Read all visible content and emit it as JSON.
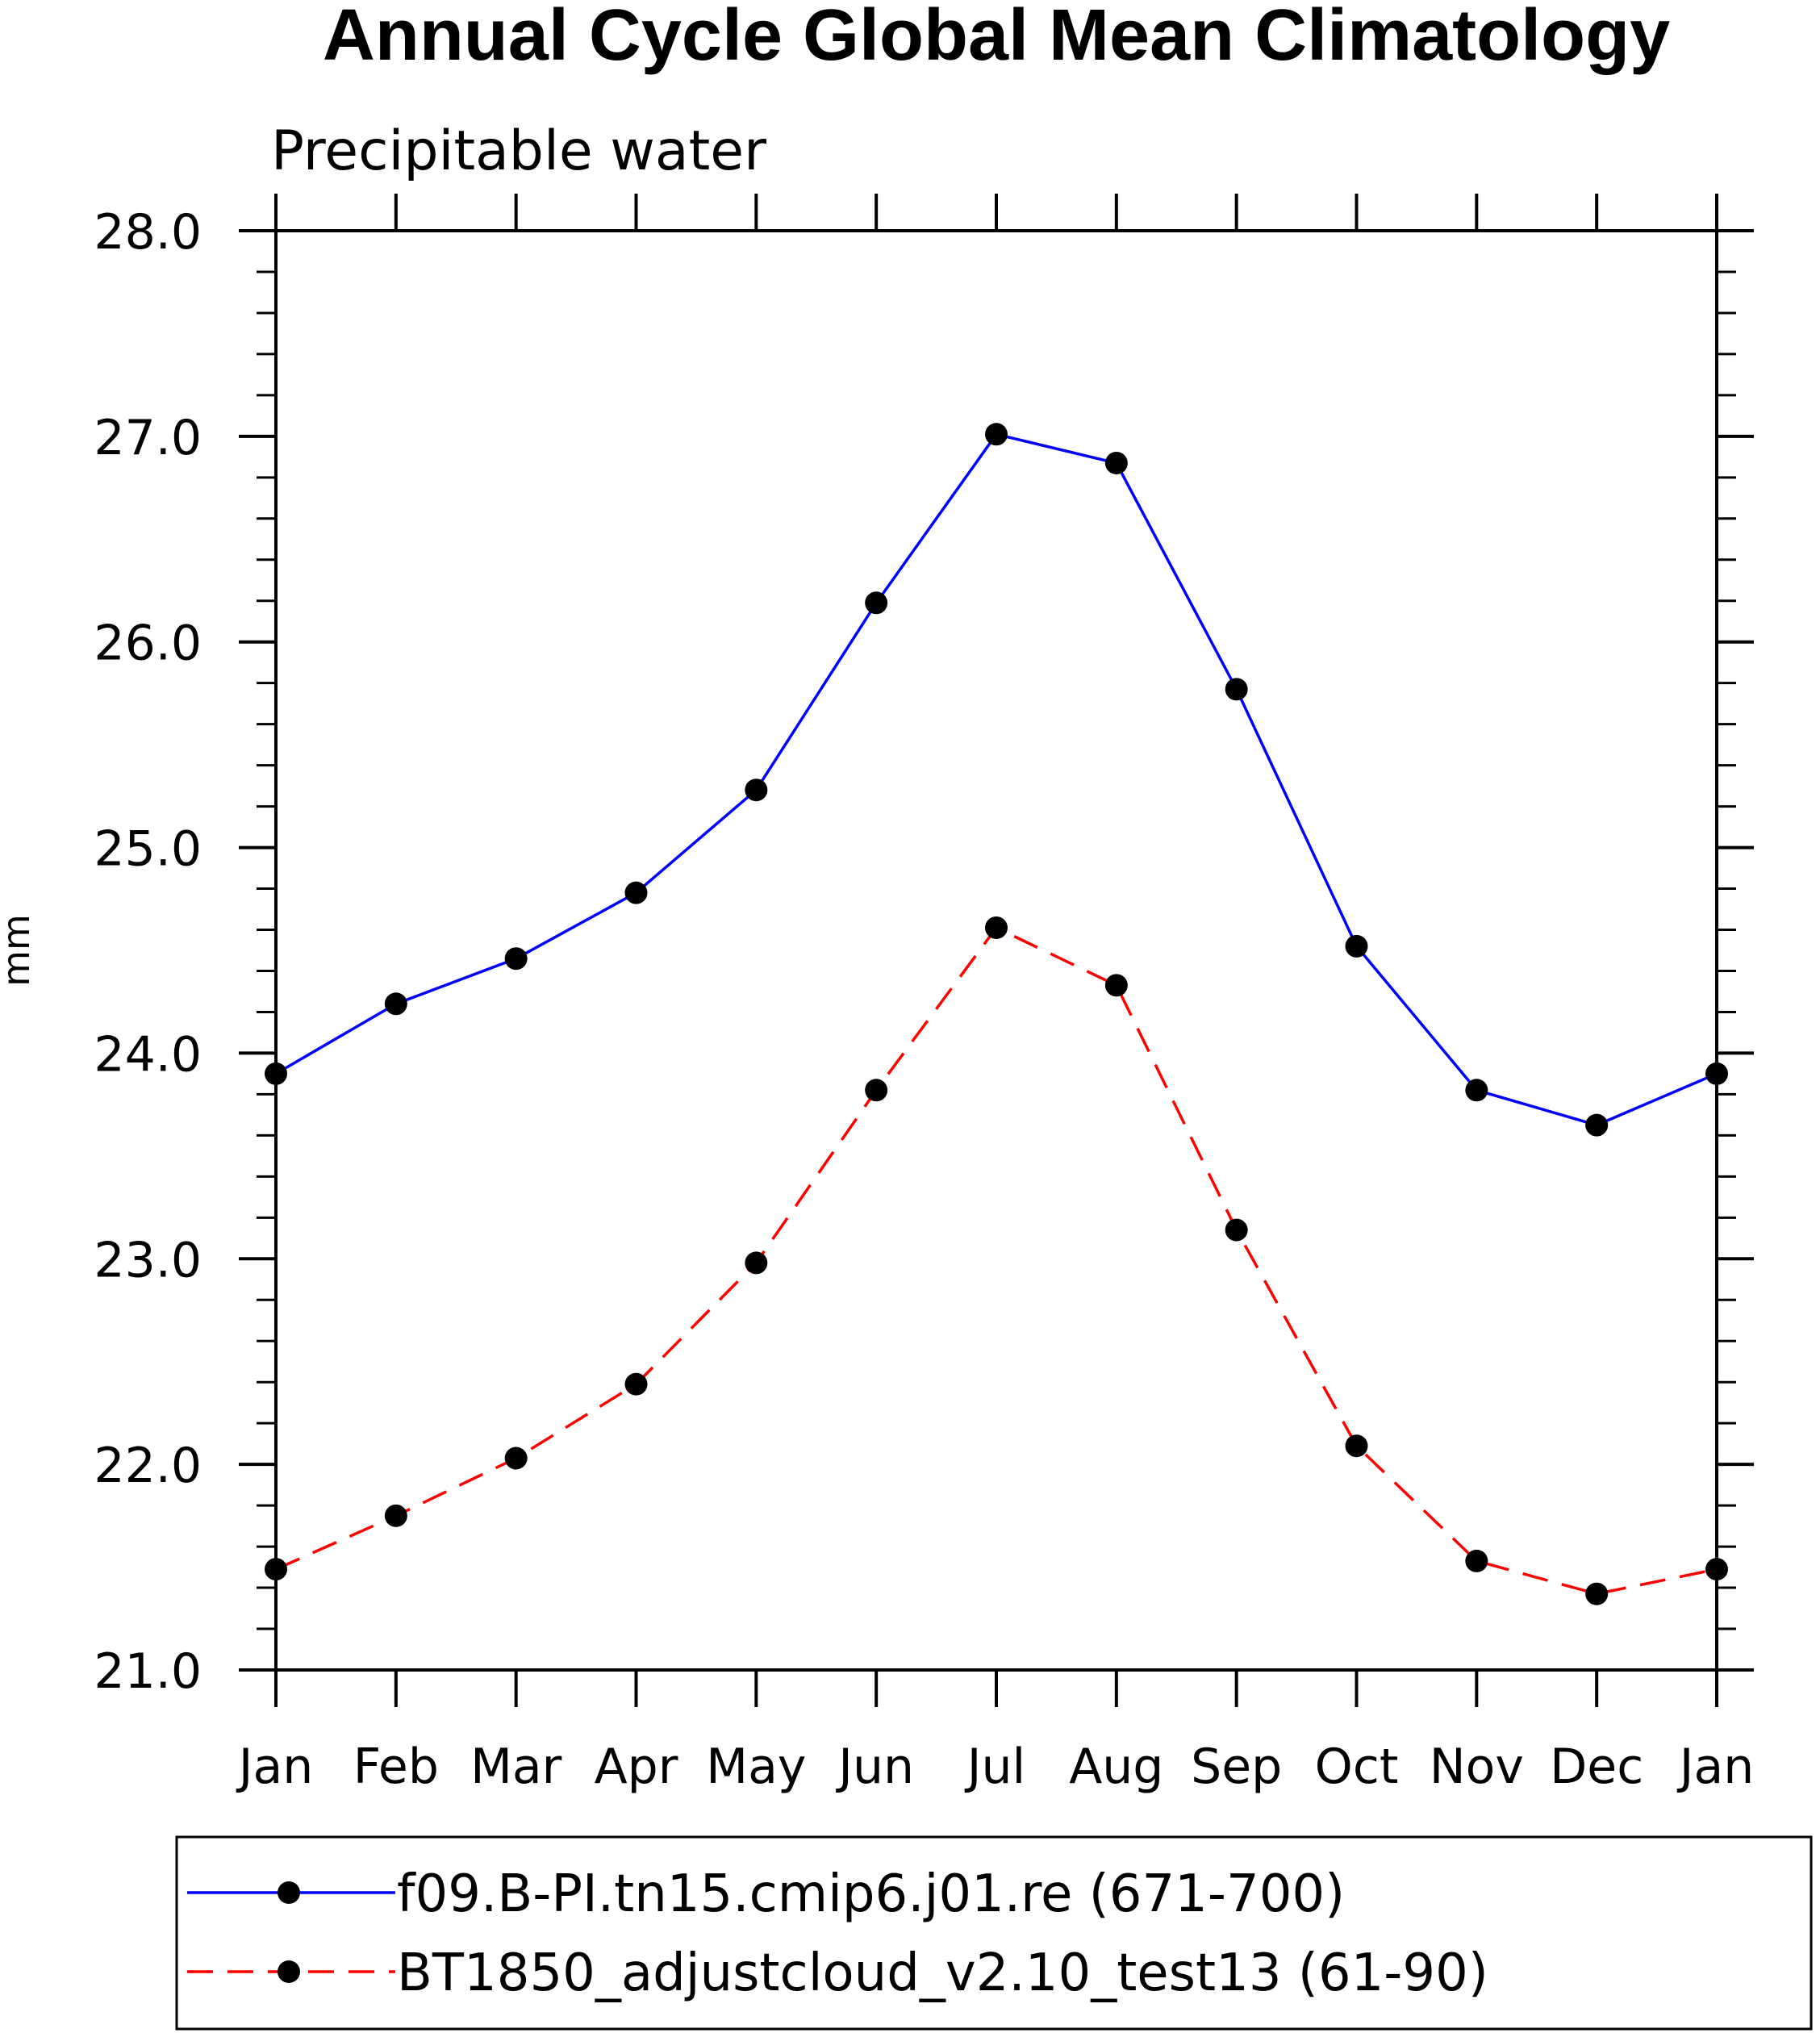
{
  "chart_data": {
    "type": "line",
    "title": "Annual Cycle Global Mean Climatology",
    "subtitle": "Precipitable water",
    "xlabel": "",
    "ylabel": "mm",
    "categories": [
      "Jan",
      "Feb",
      "Mar",
      "Apr",
      "May",
      "Jun",
      "Jul",
      "Aug",
      "Sep",
      "Oct",
      "Nov",
      "Dec",
      "Jan"
    ],
    "ylim": [
      21.0,
      28.0
    ],
    "ytick_labels": [
      "21.0",
      "22.0",
      "23.0",
      "24.0",
      "25.0",
      "26.0",
      "27.0",
      "28.0"
    ],
    "ytick_values": [
      21,
      22,
      23,
      24,
      25,
      26,
      27,
      28
    ],
    "grid": false,
    "legend_position": "bottom",
    "series": [
      {
        "name": "f09.B-PI.tn15.cmip6.j01.re (671-700)",
        "color": "#0000ff",
        "line_style": "solid",
        "marker": "filled-circle",
        "values": [
          23.9,
          24.24,
          24.46,
          24.78,
          25.28,
          26.19,
          27.01,
          26.87,
          25.77,
          24.52,
          23.82,
          23.65,
          23.9
        ]
      },
      {
        "name": "BT1850_adjustcloud_v2.10_test13 (61-90)",
        "color": "#ff0000",
        "line_style": "dashed",
        "marker": "filled-circle",
        "values": [
          21.49,
          21.75,
          22.03,
          22.39,
          22.98,
          23.82,
          24.61,
          24.33,
          23.14,
          22.09,
          21.53,
          21.37,
          21.49
        ]
      }
    ]
  }
}
